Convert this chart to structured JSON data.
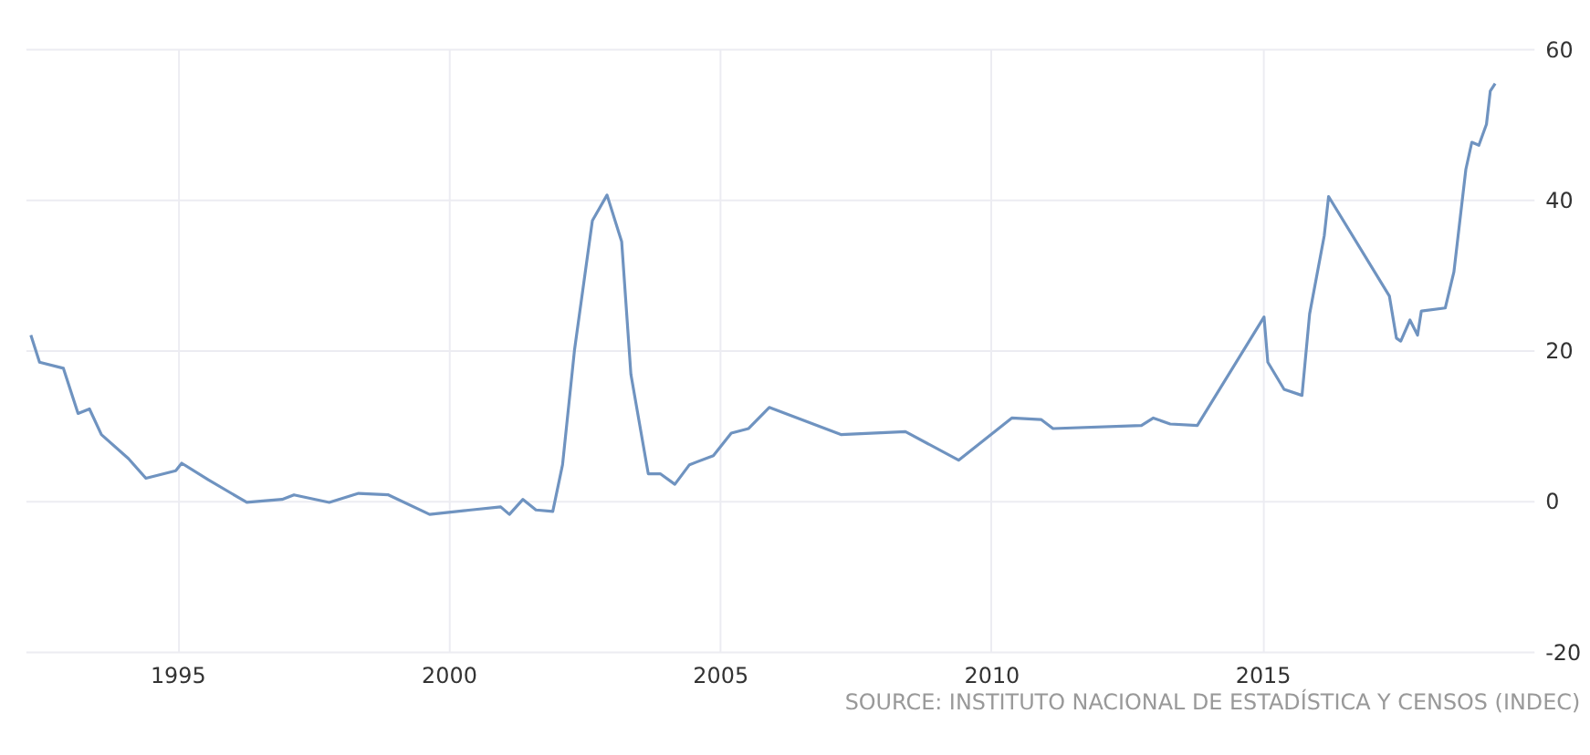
{
  "chart_data": {
    "type": "line",
    "x": [
      1992.3,
      1992.46,
      1992.9,
      1993.17,
      1993.38,
      1993.6,
      1994.1,
      1994.42,
      1994.97,
      1995.08,
      1995.57,
      1996.28,
      1996.93,
      1997.15,
      1997.8,
      1998.34,
      1998.89,
      1999.65,
      2000.41,
      2000.96,
      2001.12,
      2001.37,
      2001.61,
      2001.92,
      2002.1,
      2002.32,
      2002.65,
      2002.92,
      2003.19,
      2003.36,
      2003.68,
      2003.9,
      2004.17,
      2004.44,
      2004.88,
      2005.21,
      2005.53,
      2005.91,
      2007.23,
      2008.42,
      2009.4,
      2010.38,
      2010.92,
      2011.14,
      2012.77,
      2012.99,
      2013.3,
      2013.8,
      2015.03,
      2015.1,
      2015.4,
      2015.73,
      2015.87,
      2016.14,
      2016.22,
      2017.34,
      2017.47,
      2017.55,
      2017.72,
      2017.86,
      2017.93,
      2018.37,
      2018.53,
      2018.75,
      2018.86,
      2018.99,
      2019.13,
      2019.2,
      2019.29
    ],
    "series": [
      {
        "color": "#6f93c0",
        "values": [
          22,
          18.4,
          17.6,
          11.6,
          12.2,
          8.8,
          5.6,
          3,
          4,
          5,
          2.8,
          -0.2,
          0.2,
          0.8,
          -0.2,
          1,
          0.8,
          -1.8,
          -1.2,
          -0.8,
          -1.8,
          0.2,
          -1.2,
          -1.4,
          4.8,
          20,
          37.2,
          40.6,
          34.4,
          16.8,
          3.6,
          3.6,
          2.2,
          4.8,
          6,
          9,
          9.6,
          12.4,
          8.8,
          9.2,
          5.4,
          11,
          10.8,
          9.6,
          10,
          11,
          10.2,
          10,
          24.4,
          18.4,
          14.8,
          14,
          24.8,
          35.2,
          40.4,
          27.2,
          21.6,
          21.2,
          24,
          22,
          25.2,
          25.6,
          30.4,
          44,
          47.6,
          47.2,
          50,
          54.4,
          55.4
        ]
      }
    ],
    "xlim": [
      1992.2,
      2020
    ],
    "xticks": [
      1995,
      2000,
      2005,
      2010,
      2015
    ],
    "ylim": [
      -20,
      60
    ],
    "yticks": [
      -20,
      0,
      20,
      40,
      60
    ],
    "grid": true,
    "line_style": "solid",
    "marker": "none",
    "annotations": [
      "SOURCE: INSTITUTO NACIONAL DE ESTADÍSTICA Y CENSOS (INDEC)"
    ]
  }
}
